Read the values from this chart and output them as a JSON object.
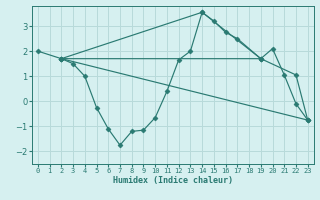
{
  "xlabel": "Humidex (Indice chaleur)",
  "bg_color": "#d6f0f0",
  "grid_color": "#b8dada",
  "line_color": "#2a7a72",
  "xlim": [
    -0.5,
    23.5
  ],
  "ylim": [
    -2.5,
    3.8
  ],
  "xticks": [
    0,
    1,
    2,
    3,
    4,
    5,
    6,
    7,
    8,
    9,
    10,
    11,
    12,
    13,
    14,
    15,
    16,
    17,
    18,
    19,
    20,
    21,
    22,
    23
  ],
  "yticks": [
    -2,
    -1,
    0,
    1,
    2,
    3
  ],
  "series": [
    {
      "x": [
        0,
        2,
        19
      ],
      "y": [
        2.0,
        1.7,
        1.7
      ]
    },
    {
      "x": [
        2,
        3,
        4,
        5,
        6,
        7,
        8,
        9,
        10,
        11,
        12,
        13,
        14,
        19,
        22,
        23
      ],
      "y": [
        1.7,
        1.5,
        1.0,
        -0.25,
        -1.1,
        -1.75,
        -1.2,
        -1.15,
        -0.65,
        0.4,
        1.65,
        2.0,
        3.55,
        1.7,
        1.05,
        -0.75
      ]
    },
    {
      "x": [
        2,
        14,
        15,
        16,
        17,
        19,
        20,
        21,
        22,
        23
      ],
      "y": [
        1.7,
        3.55,
        3.2,
        2.75,
        2.5,
        1.7,
        2.1,
        1.05,
        -0.1,
        -0.75
      ]
    },
    {
      "x": [
        2,
        23
      ],
      "y": [
        1.7,
        -0.75
      ]
    }
  ]
}
